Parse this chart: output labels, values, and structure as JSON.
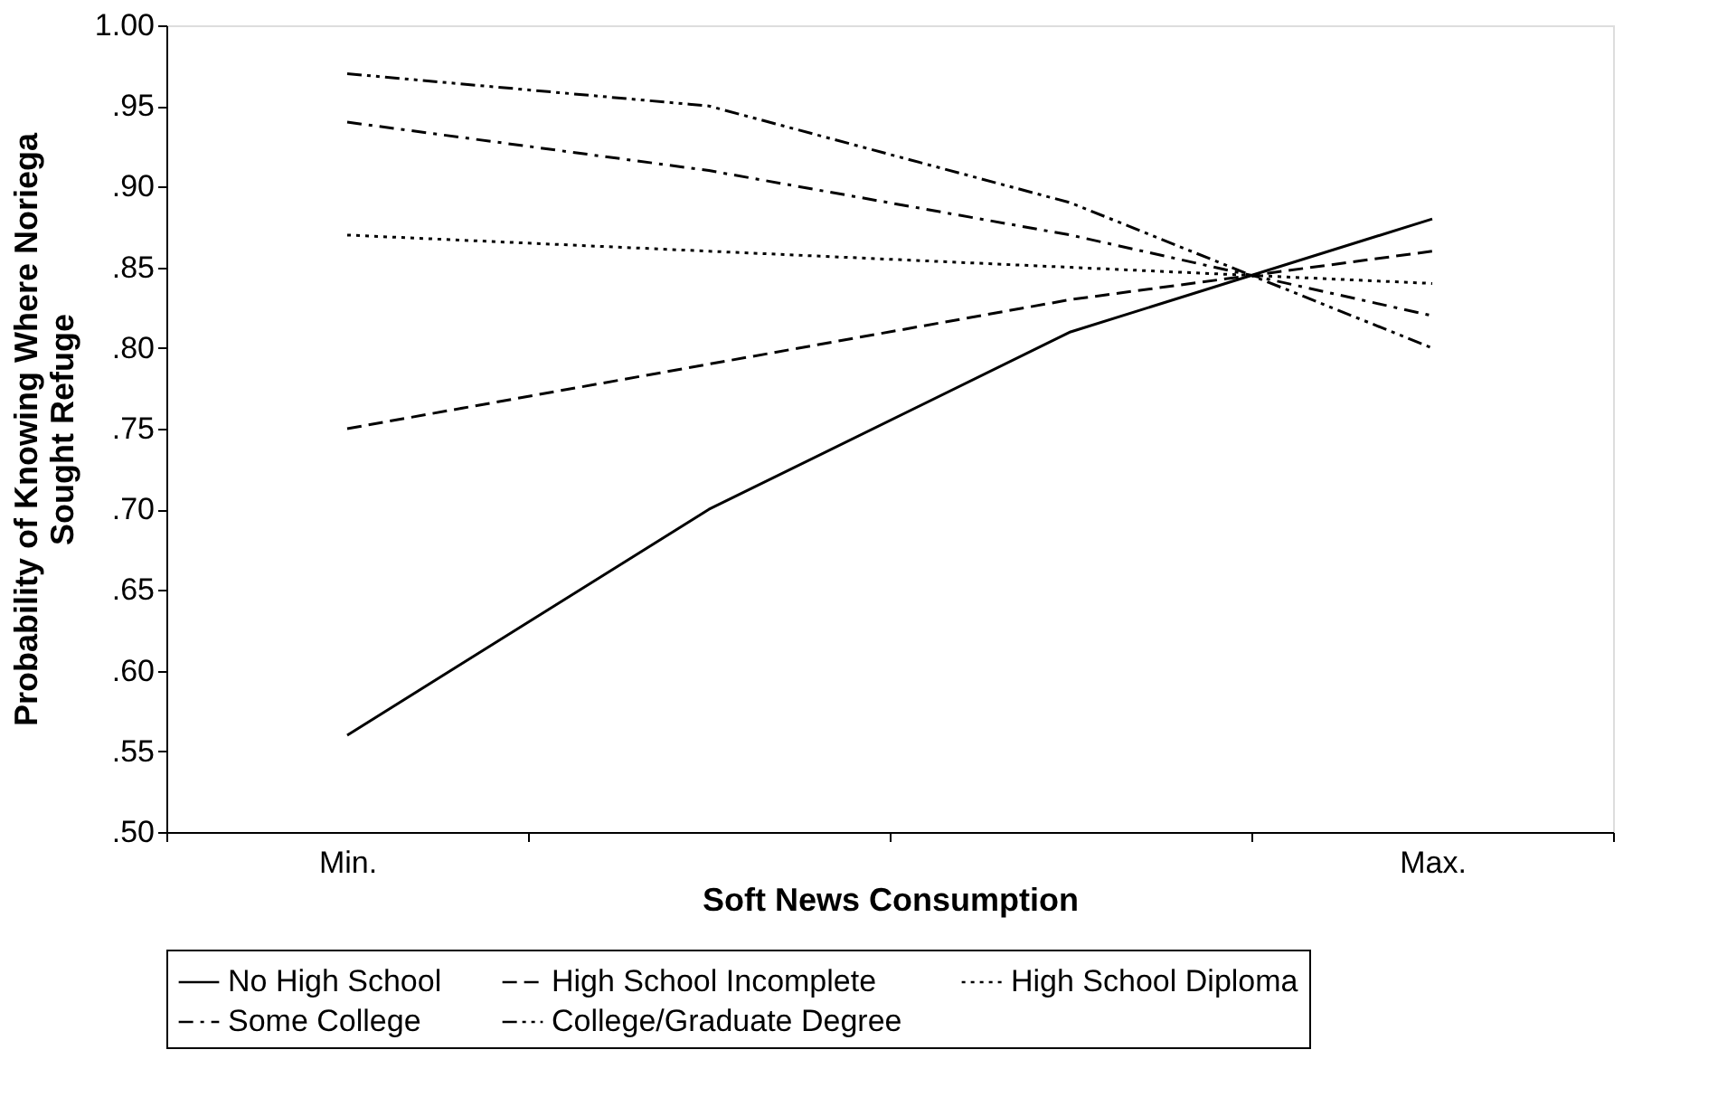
{
  "chart_data": {
    "type": "line",
    "xlabel": "Soft News Consumption",
    "ylabel": [
      "Probability of Knowing Where Noriega",
      "Sought Refuge"
    ],
    "categories": [
      "Min.",
      null,
      null,
      "Max."
    ],
    "ylim": [
      0.5,
      1.0
    ],
    "yticks": [
      {
        "value": 0.5,
        "label": ".50"
      },
      {
        "value": 0.55,
        "label": ".55"
      },
      {
        "value": 0.6,
        "label": ".60"
      },
      {
        "value": 0.65,
        "label": ".65"
      },
      {
        "value": 0.7,
        "label": ".70"
      },
      {
        "value": 0.75,
        "label": ".75"
      },
      {
        "value": 0.8,
        "label": ".80"
      },
      {
        "value": 0.85,
        "label": ".85"
      },
      {
        "value": 0.9,
        "label": ".90"
      },
      {
        "value": 0.95,
        "label": ".95"
      },
      {
        "value": 1.0,
        "label": "1.00"
      }
    ],
    "grid": false,
    "legend": "bottom",
    "marker": "none",
    "series": [
      {
        "name": "No High School",
        "color": "#000000",
        "line_style": "solid",
        "values": [
          0.56,
          0.7,
          0.81,
          0.88
        ]
      },
      {
        "name": "High School Incomplete",
        "color": "#000000",
        "line_style": "dashed",
        "values": [
          0.75,
          0.79,
          0.83,
          0.86
        ]
      },
      {
        "name": "High School Diploma",
        "color": "#000000",
        "line_style": "dotted",
        "values": [
          0.87,
          0.86,
          0.85,
          0.84
        ]
      },
      {
        "name": "Some College",
        "color": "#000000",
        "line_style": "dashdot",
        "values": [
          0.94,
          0.91,
          0.87,
          0.82
        ]
      },
      {
        "name": "College/Graduate Degree",
        "color": "#000000",
        "line_style": "dashdotdot",
        "values": [
          0.97,
          0.95,
          0.89,
          0.8
        ]
      }
    ]
  }
}
